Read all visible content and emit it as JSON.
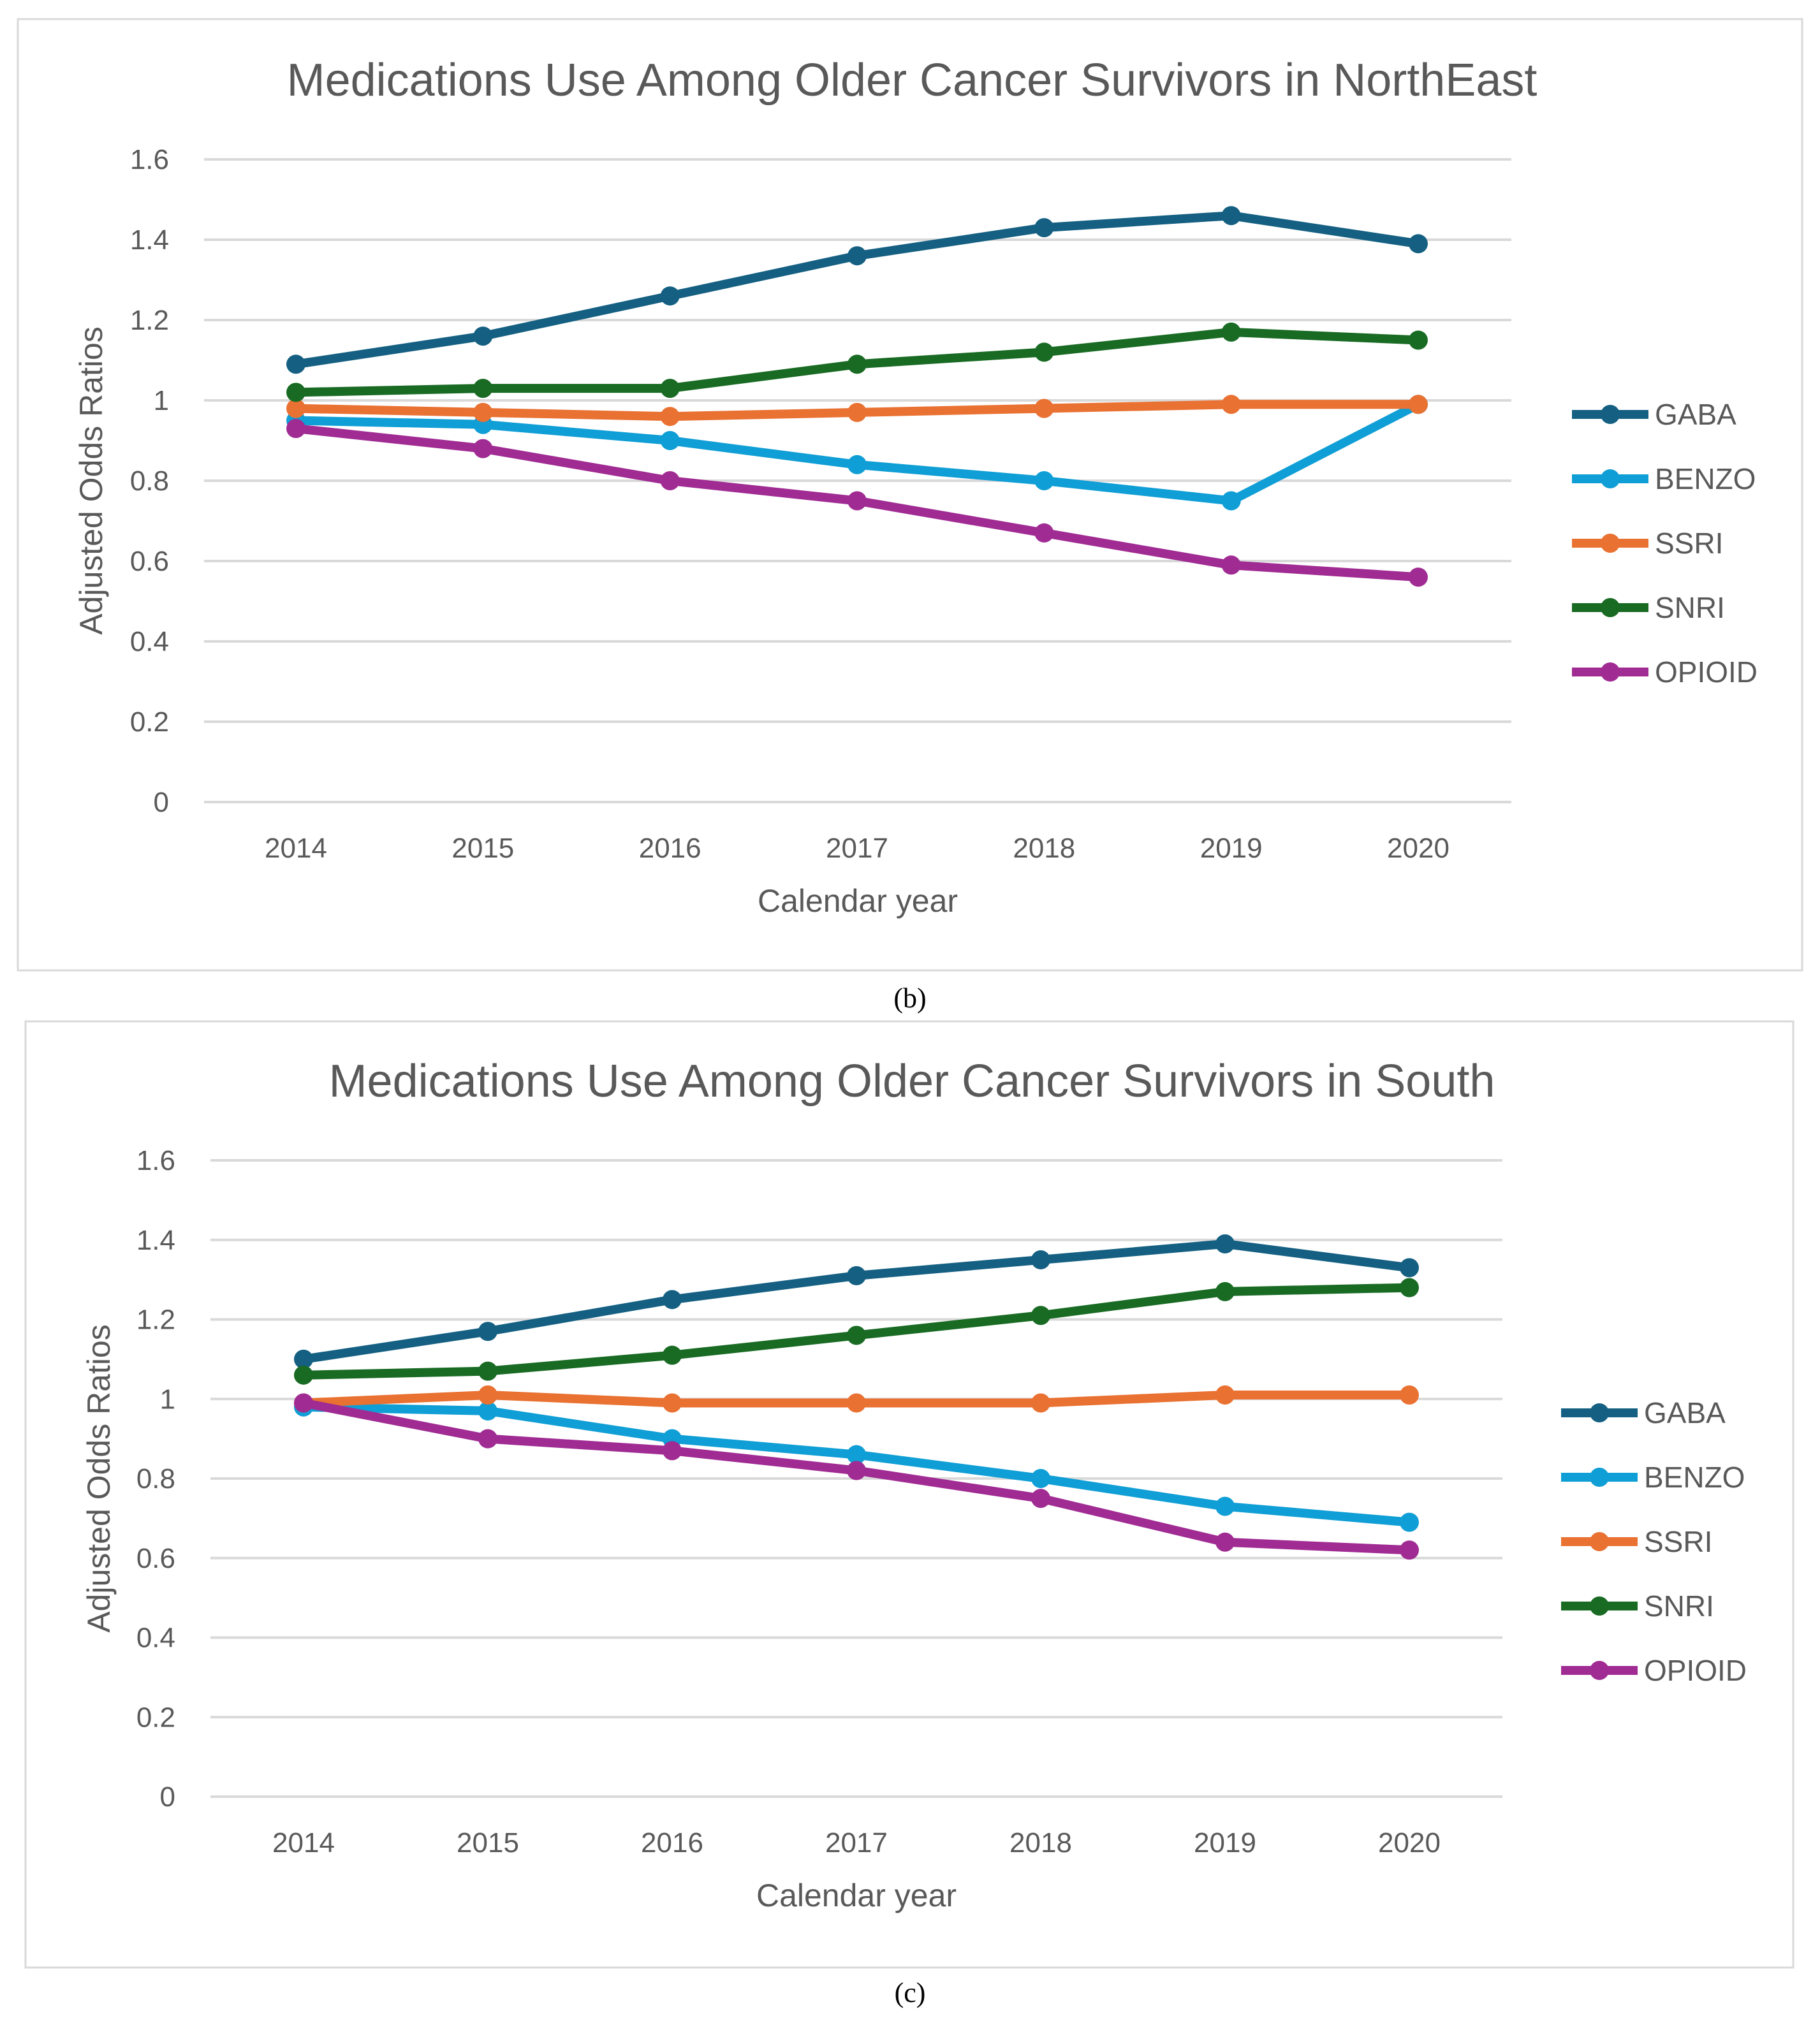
{
  "chart_data": [
    {
      "type": "line",
      "title": "Medications Use Among Older Cancer Survivors in NorthEast",
      "xlabel": "Calendar year",
      "ylabel": "Adjusted Odds Ratios",
      "caption": "(b)",
      "x": [
        "2014",
        "2015",
        "2016",
        "2017",
        "2018",
        "2019",
        "2020"
      ],
      "ylim": [
        0,
        1.6
      ],
      "yticks": [
        "0",
        "0.2",
        "0.4",
        "0.6",
        "0.8",
        "1",
        "1.2",
        "1.4",
        "1.6"
      ],
      "grid": true,
      "legend_position": "right",
      "series": [
        {
          "name": "GABA",
          "color": "#156082",
          "values": [
            1.09,
            1.16,
            1.26,
            1.36,
            1.43,
            1.46,
            1.39
          ]
        },
        {
          "name": "BENZO",
          "color": "#0F9ED5",
          "values": [
            0.95,
            0.94,
            0.9,
            0.84,
            0.8,
            0.75,
            0.99
          ]
        },
        {
          "name": "SSRI",
          "color": "#E97132",
          "values": [
            0.98,
            0.97,
            0.96,
            0.97,
            0.98,
            0.99,
            0.99
          ]
        },
        {
          "name": "SNRI",
          "color": "#196B24",
          "values": [
            1.02,
            1.03,
            1.03,
            1.09,
            1.12,
            1.17,
            1.15
          ]
        },
        {
          "name": "OPIOID",
          "color": "#A02B93",
          "values": [
            0.93,
            0.88,
            0.8,
            0.75,
            0.67,
            0.59,
            0.56
          ]
        }
      ]
    },
    {
      "type": "line",
      "title": "Medications Use Among Older Cancer Survivors in South",
      "xlabel": "Calendar year",
      "ylabel": "Adjusted Odds Ratios",
      "caption": "(c)",
      "x": [
        "2014",
        "2015",
        "2016",
        "2017",
        "2018",
        "2019",
        "2020"
      ],
      "ylim": [
        0,
        1.6
      ],
      "yticks": [
        "0",
        "0.2",
        "0.4",
        "0.6",
        "0.8",
        "1",
        "1.2",
        "1.4",
        "1.6"
      ],
      "grid": true,
      "legend_position": "right",
      "series": [
        {
          "name": "GABA",
          "color": "#156082",
          "values": [
            1.1,
            1.17,
            1.25,
            1.31,
            1.35,
            1.39,
            1.33
          ]
        },
        {
          "name": "BENZO",
          "color": "#0F9ED5",
          "values": [
            0.98,
            0.97,
            0.9,
            0.86,
            0.8,
            0.73,
            0.69
          ]
        },
        {
          "name": "SSRI",
          "color": "#E97132",
          "values": [
            0.99,
            1.01,
            0.99,
            0.99,
            0.99,
            1.01,
            1.01
          ]
        },
        {
          "name": "SNRI",
          "color": "#196B24",
          "values": [
            1.06,
            1.07,
            1.11,
            1.16,
            1.21,
            1.27,
            1.28
          ]
        },
        {
          "name": "OPIOID",
          "color": "#A02B93",
          "values": [
            0.99,
            0.9,
            0.87,
            0.82,
            0.75,
            0.64,
            0.62
          ]
        }
      ]
    }
  ]
}
